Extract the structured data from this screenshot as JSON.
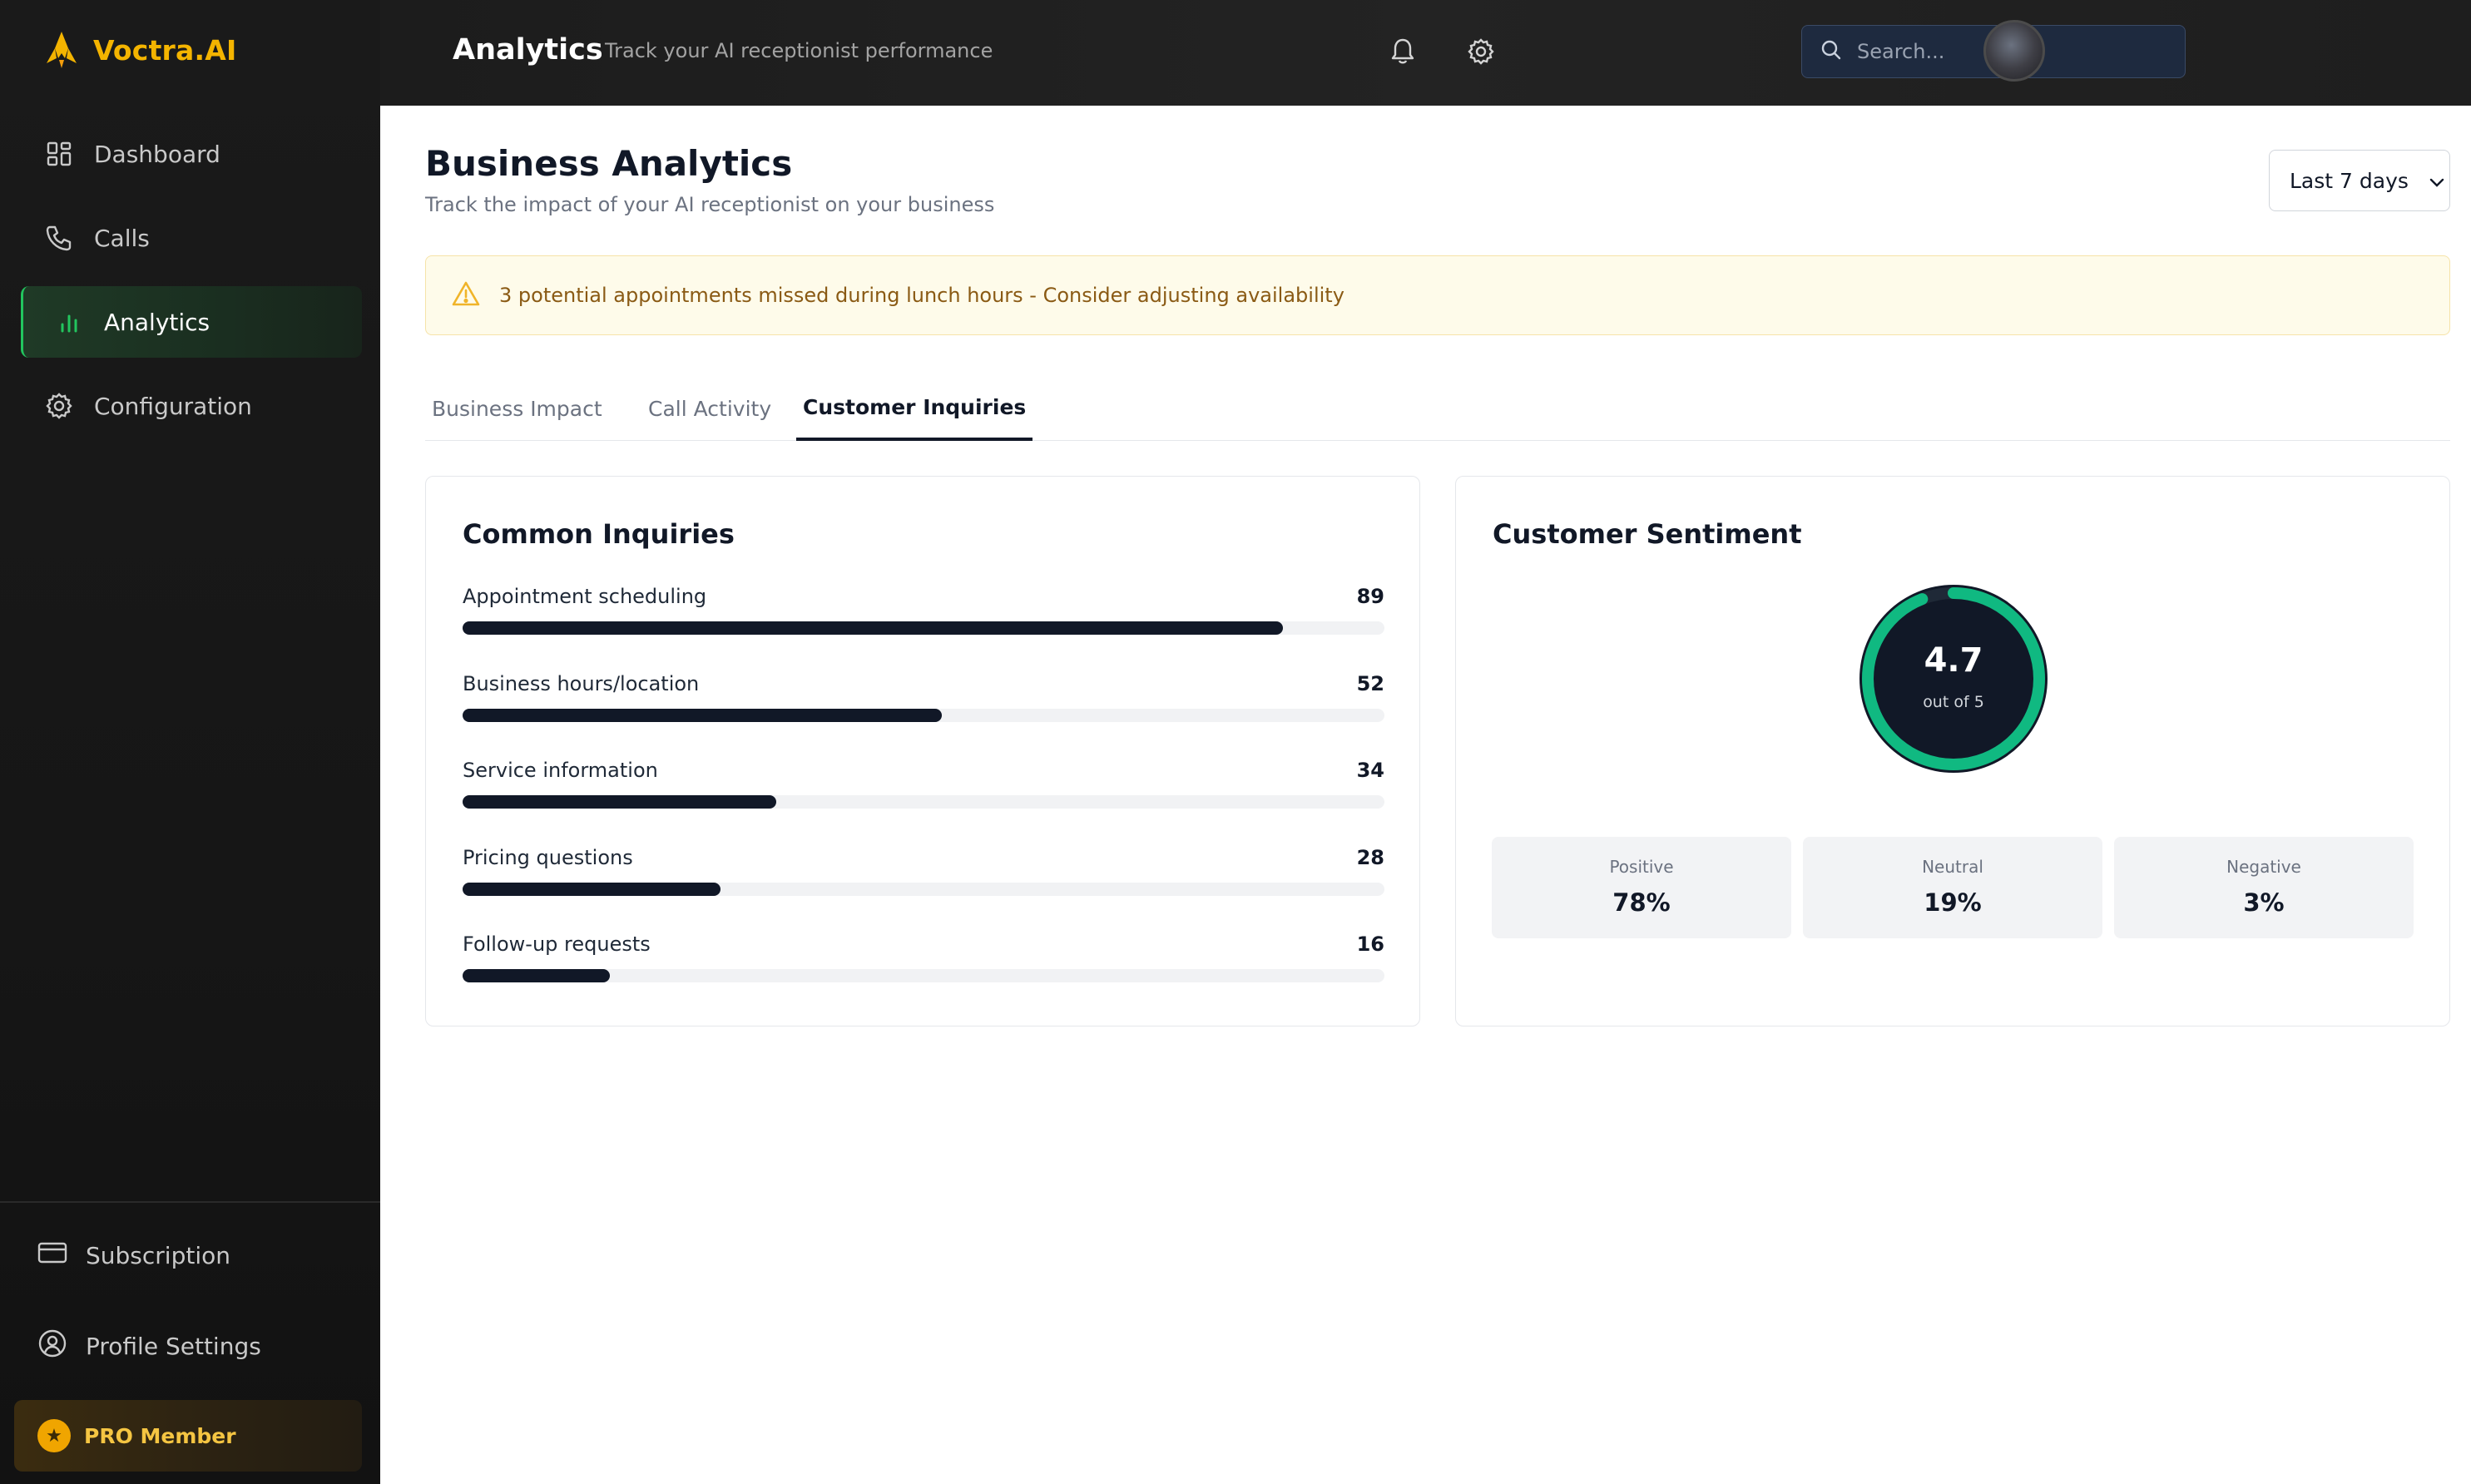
{
  "brand": {
    "name": "Voctra.AI",
    "logo_icon": "rocket-flame-icon",
    "accent": "#f4b400"
  },
  "sidebar": {
    "items": [
      {
        "label": "Dashboard",
        "icon": "dashboard-grid-icon",
        "active": false
      },
      {
        "label": "Calls",
        "icon": "phone-icon",
        "active": false
      },
      {
        "label": "Analytics",
        "icon": "bar-chart-icon",
        "active": true
      },
      {
        "label": "Configuration",
        "icon": "gear-icon",
        "active": false
      }
    ],
    "bottom": [
      {
        "label": "Subscription",
        "icon": "credit-card-icon"
      },
      {
        "label": "Profile Settings",
        "icon": "user-circle-icon"
      }
    ],
    "pro": {
      "label": "PRO Member",
      "icon": "star-icon"
    }
  },
  "header": {
    "title": "Analytics",
    "subtitle": "Track your AI receptionist performance",
    "search_placeholder": "Search..."
  },
  "main": {
    "title": "Business Analytics",
    "subtitle": "Track the impact of your AI receptionist on your business",
    "date_range": "Last 7 days",
    "alert": {
      "text": "3 potential appointments missed during lunch hours - Consider adjusting availability",
      "icon": "warning-triangle-icon",
      "color": "#f0b429"
    },
    "tabs": [
      {
        "label": "Business Impact",
        "active": false
      },
      {
        "label": "Call Activity",
        "active": false
      },
      {
        "label": "Customer Inquiries",
        "active": true
      }
    ],
    "common_inquiries": {
      "title": "Common Inquiries",
      "items": [
        {
          "label": "Appointment scheduling",
          "count": "89",
          "fraction": 0.89
        },
        {
          "label": "Business hours/location",
          "count": "52",
          "fraction": 0.52
        },
        {
          "label": "Service information",
          "count": "34",
          "fraction": 0.34
        },
        {
          "label": "Pricing questions",
          "count": "28",
          "fraction": 0.28
        },
        {
          "label": "Follow-up requests",
          "count": "16",
          "fraction": 0.16
        }
      ]
    },
    "sentiment": {
      "title": "Customer Sentiment",
      "score": "4.7",
      "score_sub": "out of 5",
      "score_fraction": 0.94,
      "ring_color": "#10b981",
      "stats": [
        {
          "label": "Positive",
          "value": "78%"
        },
        {
          "label": "Neutral",
          "value": "19%"
        },
        {
          "label": "Negative",
          "value": "3%"
        }
      ]
    }
  }
}
